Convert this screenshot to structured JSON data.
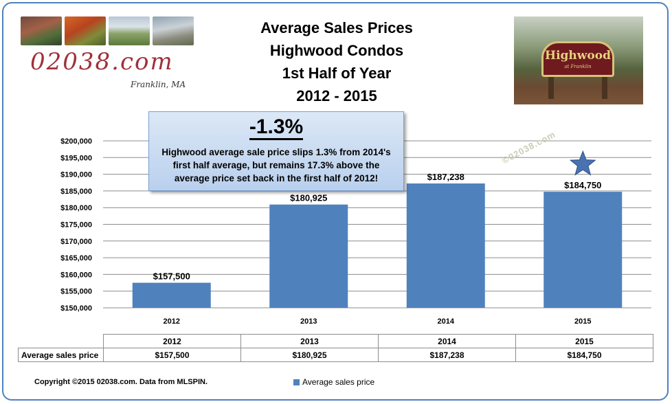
{
  "title_lines": [
    "Average Sales Prices",
    "Highwood Condos",
    "1st Half of Year",
    "2012 - 2015"
  ],
  "logo": {
    "site": "02038.com",
    "town": "Franklin, MA"
  },
  "sign": {
    "name": "Highwood",
    "sub": "at Franklin"
  },
  "callout": {
    "headline": "-1.3%",
    "text": "Highwood average sale price slips 1.3% from 2014's first half average, but remains 17.3% above the average price set back in the first half of 2012!"
  },
  "watermark": "©02038.com",
  "chart_data": {
    "type": "bar",
    "categories": [
      "2012",
      "2013",
      "2014",
      "2015"
    ],
    "series": [
      {
        "name": "Average sales price",
        "values": [
          157500,
          180925,
          187238,
          184750
        ]
      }
    ],
    "value_labels": [
      "$157,500",
      "$180,925",
      "$187,238",
      "$184,750"
    ],
    "ylim": [
      150000,
      200000
    ],
    "yticks": [
      "$150,000",
      "$155,000",
      "$160,000",
      "$165,000",
      "$170,000",
      "$175,000",
      "$180,000",
      "$185,000",
      "$190,000",
      "$195,000",
      "$200,000"
    ],
    "grid": true,
    "highlight": {
      "category": "2015",
      "marker": "star"
    },
    "color": "#4f81bd"
  },
  "table": {
    "row_label": "Average sales price",
    "headers": [
      "2012",
      "2013",
      "2014",
      "2015"
    ],
    "values": [
      "$157,500",
      "$180,925",
      "$187,238",
      "$184,750"
    ]
  },
  "footer": "Copyright ©2015 02038.com. Data from MLSPIN.",
  "legend_label": "Average sales price"
}
